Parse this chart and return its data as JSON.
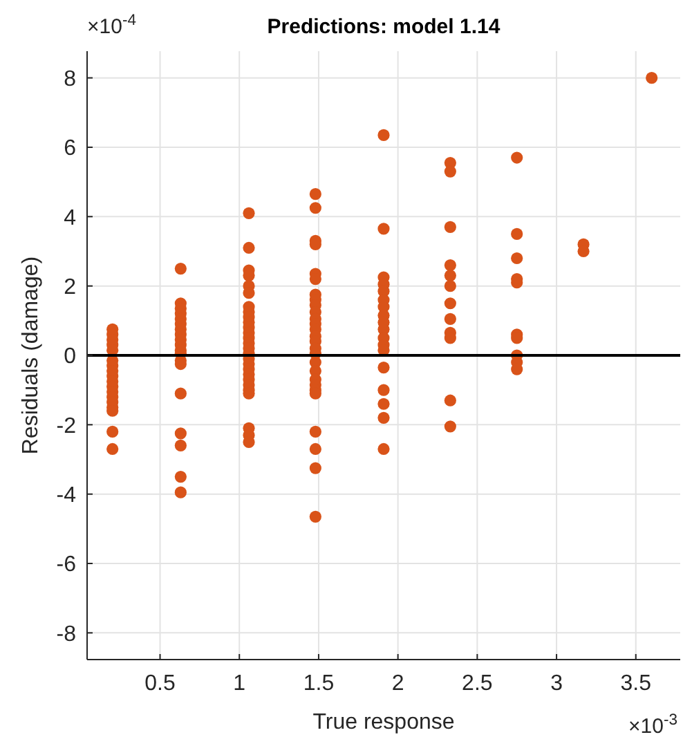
{
  "chart_data": {
    "type": "scatter",
    "title": "Predictions: model 1.14",
    "xlabel": "True response",
    "ylabel": "Residuals (damage)",
    "annotations": [
      "×10$^{-4}$",
      "×10$^{-3}$"
    ],
    "series": [
      {
        "color": "#d95319",
        "x": [
          0.2,
          0.2,
          0.2,
          0.2,
          0.2,
          0.2,
          0.2,
          0.2,
          0.2,
          0.2,
          0.2,
          0.2,
          0.2,
          0.2,
          0.2,
          0.2,
          0.2,
          0.2,
          0.63,
          0.63,
          0.63,
          0.63,
          0.63,
          0.63,
          0.63,
          0.63,
          0.63,
          0.63,
          0.63,
          0.63,
          0.63,
          0.63,
          0.63,
          0.63,
          0.63,
          0.63,
          0.63,
          1.06,
          1.06,
          1.06,
          1.06,
          1.06,
          1.06,
          1.06,
          1.06,
          1.06,
          1.06,
          1.06,
          1.06,
          1.06,
          1.06,
          1.06,
          1.06,
          1.06,
          1.06,
          1.06,
          1.06,
          1.06,
          1.06,
          1.06,
          1.06,
          1.06,
          1.06,
          1.06,
          1.48,
          1.48,
          1.48,
          1.48,
          1.48,
          1.48,
          1.48,
          1.48,
          1.48,
          1.48,
          1.48,
          1.48,
          1.48,
          1.48,
          1.48,
          1.48,
          1.48,
          1.48,
          1.48,
          1.48,
          1.48,
          1.48,
          1.48,
          1.48,
          1.48,
          1.48,
          1.48,
          1.91,
          1.91,
          1.91,
          1.91,
          1.91,
          1.91,
          1.91,
          1.91,
          1.91,
          1.91,
          1.91,
          1.91,
          1.91,
          1.91,
          1.91,
          1.91,
          1.91,
          1.91,
          2.33,
          2.33,
          2.33,
          2.33,
          2.33,
          2.33,
          2.33,
          2.33,
          2.33,
          2.33,
          2.33,
          2.33,
          2.75,
          2.75,
          2.75,
          2.75,
          2.75,
          2.75,
          2.75,
          2.75,
          2.75,
          2.75,
          3.17,
          3.17,
          3.6
        ],
        "values": [
          0.75,
          0.6,
          0.45,
          0.3,
          0.15,
          -0.15,
          -0.3,
          -0.45,
          -0.6,
          -0.75,
          -0.9,
          -1.05,
          -1.2,
          -1.35,
          -1.5,
          -1.6,
          -2.2,
          -2.7,
          2.5,
          1.5,
          1.35,
          1.2,
          1.05,
          0.9,
          0.75,
          0.6,
          0.45,
          0.3,
          0.15,
          0.05,
          -0.15,
          -0.25,
          -1.1,
          -2.25,
          -2.6,
          -3.5,
          -3.95,
          4.1,
          3.1,
          2.45,
          2.3,
          2.0,
          1.8,
          1.4,
          1.25,
          1.1,
          0.95,
          0.8,
          0.65,
          0.5,
          0.35,
          0.2,
          0.05,
          -0.1,
          -0.25,
          -0.4,
          -0.55,
          -0.7,
          -0.85,
          -1.0,
          -1.1,
          -2.1,
          -2.3,
          -2.5,
          4.65,
          4.25,
          3.3,
          3.2,
          2.35,
          2.2,
          1.75,
          1.6,
          1.45,
          1.25,
          1.05,
          0.9,
          0.75,
          0.55,
          0.4,
          0.2,
          0.05,
          -0.2,
          -0.45,
          -0.7,
          -0.85,
          -1.0,
          -1.1,
          -2.2,
          -2.7,
          -3.25,
          -4.65,
          6.35,
          3.65,
          2.25,
          2.05,
          1.85,
          1.6,
          1.4,
          1.15,
          0.95,
          0.75,
          0.5,
          0.3,
          0.15,
          -0.35,
          -1.0,
          -1.4,
          -1.8,
          -2.7,
          5.55,
          5.3,
          3.7,
          2.6,
          2.3,
          2.0,
          1.5,
          1.05,
          0.65,
          0.5,
          -1.3,
          -2.05,
          5.7,
          3.5,
          2.8,
          2.2,
          2.1,
          0.6,
          0.5,
          0,
          -0.2,
          -0.4,
          3.2,
          3.0,
          8.0
        ]
      }
    ],
    "xlim": [
      0.04,
      3.78
    ],
    "ylim": [
      -8.77,
      8.77
    ],
    "xticks": [
      0.5,
      1,
      1.5,
      2,
      2.5,
      3,
      3.5
    ],
    "yticks": [
      -8,
      -6,
      -4,
      -2,
      0,
      2,
      4,
      6,
      8
    ],
    "ref_lines": [
      {
        "axis": "y",
        "value": 0,
        "color": "#000000",
        "line_style": "solid"
      }
    ],
    "grid": true,
    "marker": "circle"
  }
}
